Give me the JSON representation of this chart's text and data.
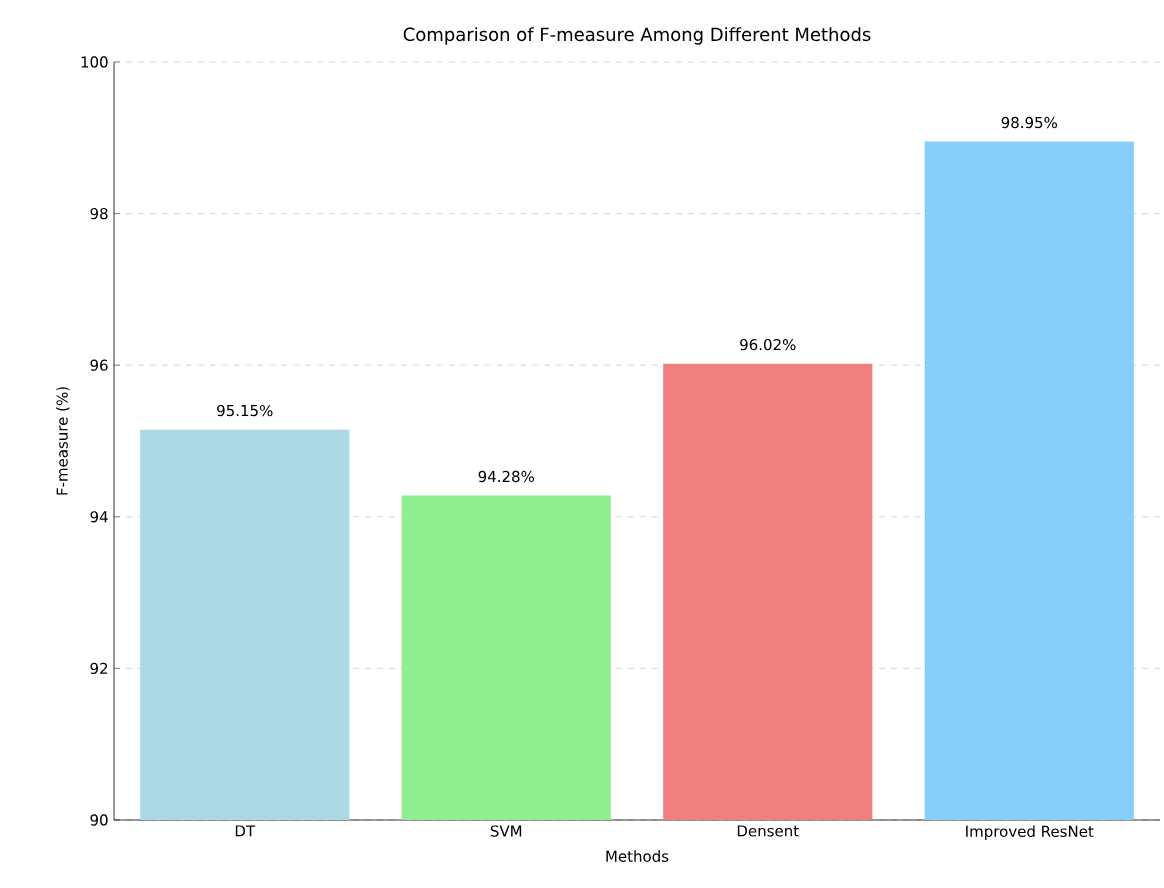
{
  "chart_data": {
    "type": "bar",
    "title": "Comparison of F-measure Among Different Methods",
    "xlabel": "Methods",
    "ylabel": "F-measure (%)",
    "categories": [
      "DT",
      "SVM",
      "Densent",
      "Improved ResNet"
    ],
    "values": [
      95.15,
      94.28,
      96.02,
      98.95
    ],
    "colors": [
      "#add8e6",
      "#90ee90",
      "#f08080",
      "#87cefa"
    ],
    "value_labels": [
      "95.15%",
      "94.28%",
      "96.02%",
      "98.95%"
    ],
    "ylim": [
      90,
      100
    ],
    "yticks": [
      90,
      92,
      94,
      96,
      98,
      100
    ],
    "grid": "y"
  }
}
